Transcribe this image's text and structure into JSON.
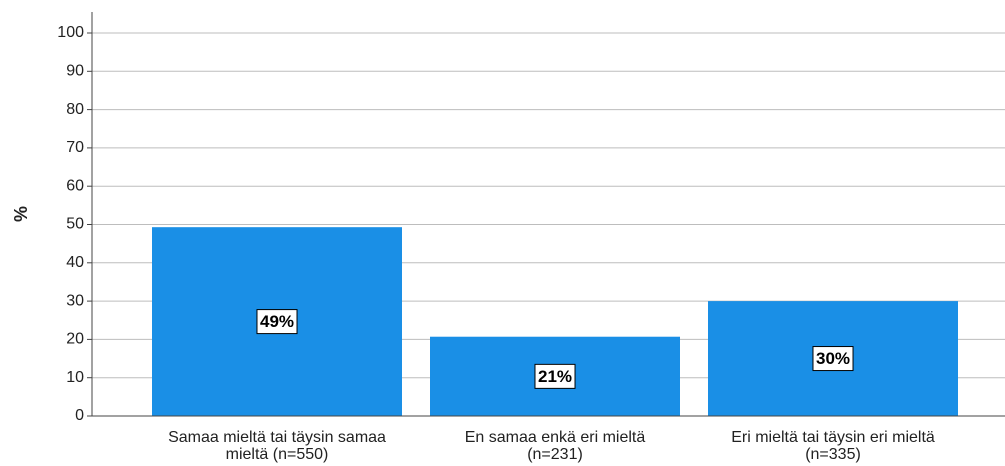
{
  "chart_data": {
    "type": "bar",
    "y_label": "%",
    "categories": [
      [
        "Samaa mieltä tai täysin samaa",
        "mieltä (n=550)"
      ],
      [
        "En samaa enkä eri mieltä",
        "(n=231)"
      ],
      [
        "Eri mieltä tai täysin eri mieltä",
        "(n=335)"
      ]
    ],
    "values": [
      49.3,
      20.7,
      30.0
    ],
    "value_labels": [
      "49%",
      "21%",
      "30%"
    ],
    "color": "#1a8fe6",
    "ylim": [
      0,
      100
    ],
    "yticks": [
      0,
      10,
      20,
      30,
      40,
      50,
      60,
      70,
      80,
      90,
      100
    ],
    "grid": true
  }
}
